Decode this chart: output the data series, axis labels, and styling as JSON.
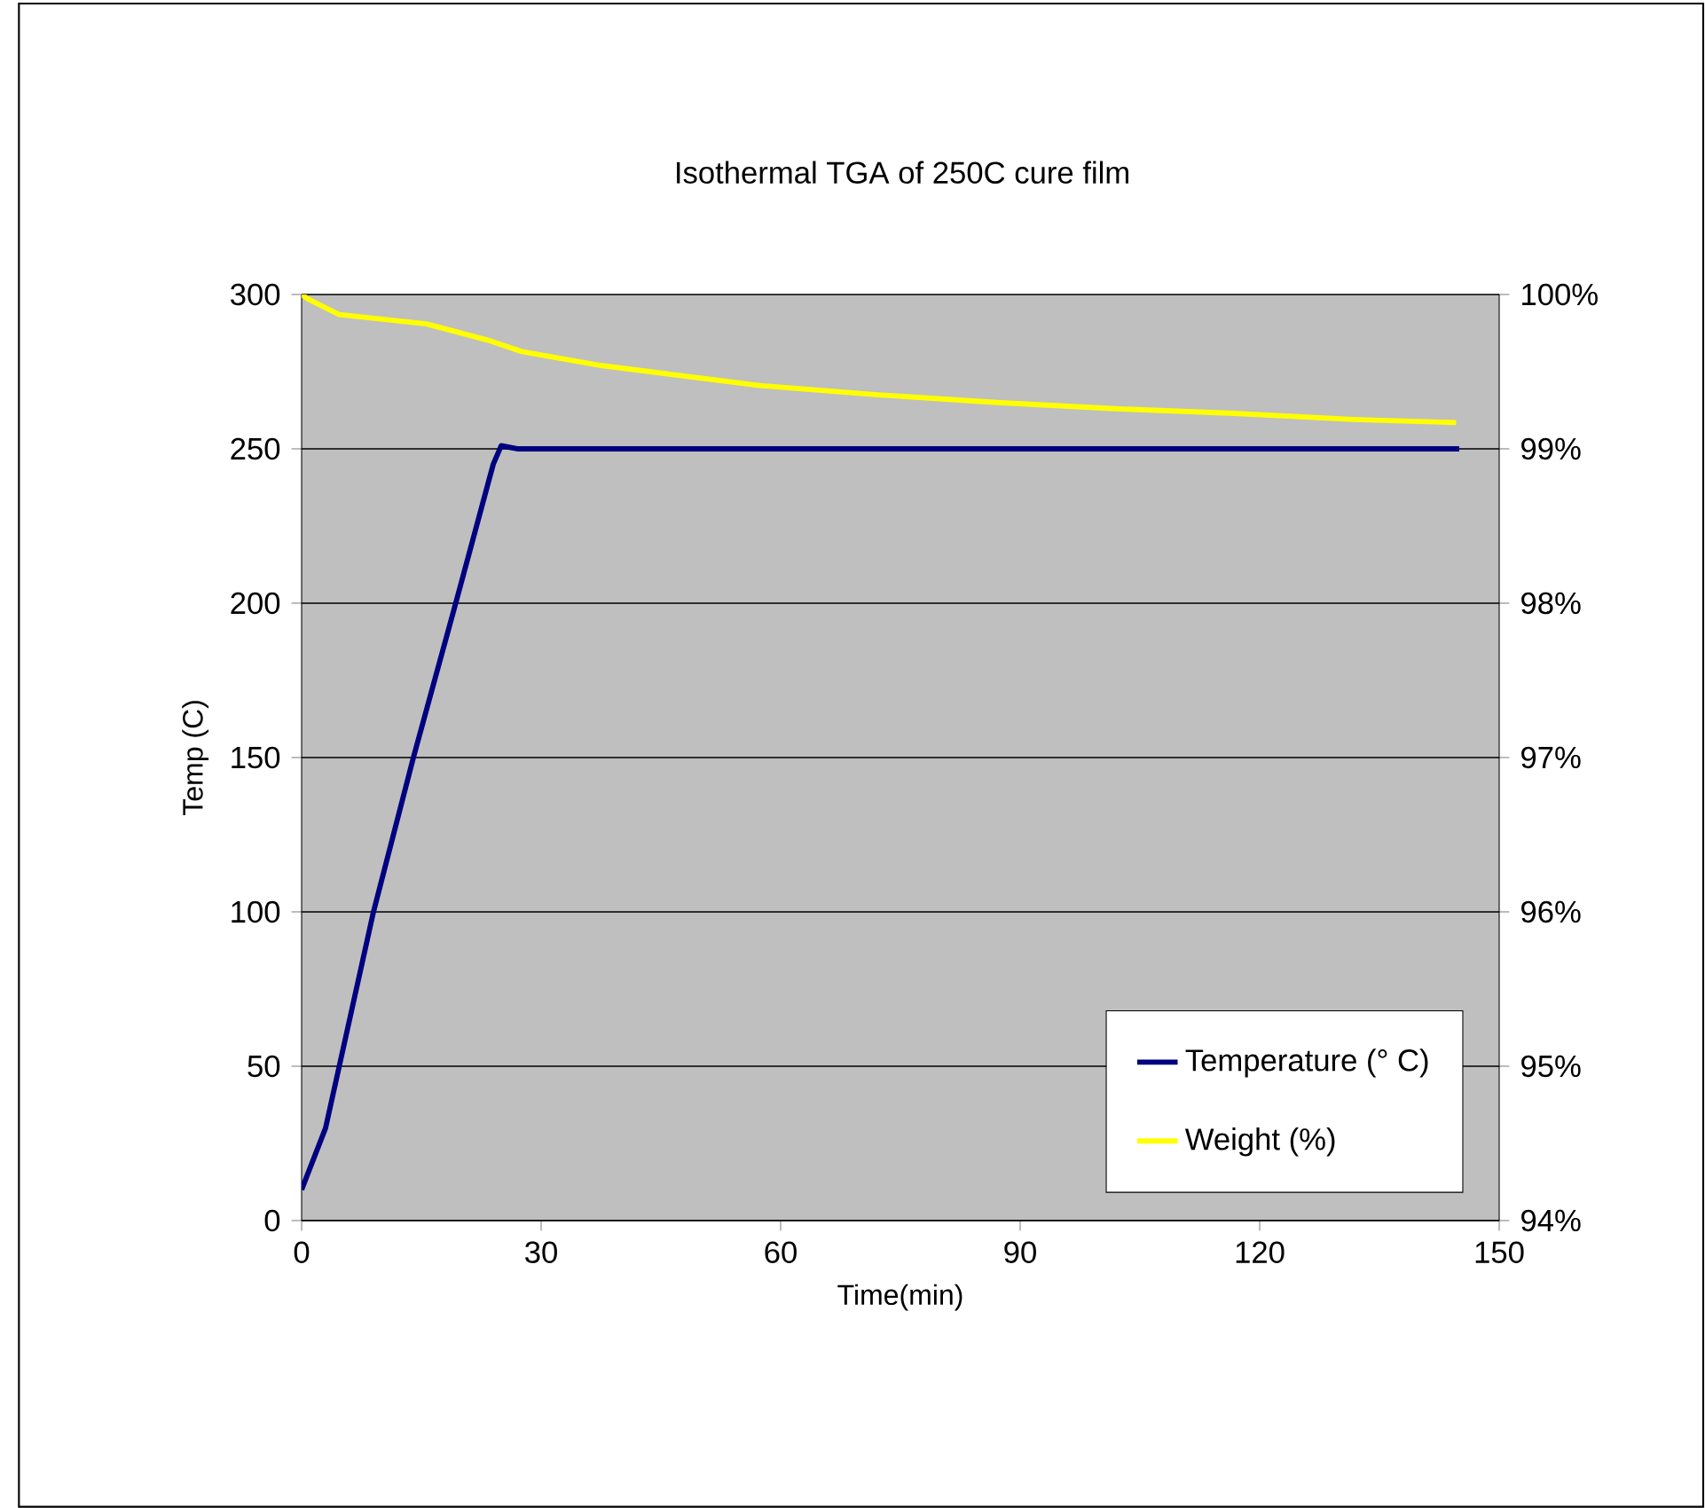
{
  "chart_data": {
    "type": "line",
    "title": "Isothermal TGA of  250C cure film",
    "xlabel": "Time(min)",
    "ylabel": "Temp (C)",
    "xlim": [
      0,
      150
    ],
    "xticks": [
      0,
      30,
      60,
      90,
      120,
      150
    ],
    "ylim": [
      0,
      300
    ],
    "yticks": [
      0,
      50,
      100,
      150,
      200,
      250,
      300
    ],
    "y2lim": [
      94,
      100
    ],
    "y2ticks": [
      {
        "value": 94,
        "label": "94%"
      },
      {
        "value": 95,
        "label": "95%"
      },
      {
        "value": 96,
        "label": "96%"
      },
      {
        "value": 97,
        "label": "97%"
      },
      {
        "value": 98,
        "label": "98%"
      },
      {
        "value": 99,
        "label": "99%"
      },
      {
        "value": 100,
        "label": "100%"
      }
    ],
    "grid": "y",
    "legend": "bottom right",
    "series": [
      {
        "name": "Temperature (°  C)",
        "color": "#000080",
        "x": [
          0,
          3,
          9,
          14,
          19.3,
          24,
          25,
          27,
          145
        ],
        "values": [
          10,
          30,
          100,
          150,
          200,
          245,
          251,
          250,
          250
        ]
      },
      {
        "name": "Weight (%)",
        "color": "#ffff00",
        "axis": "y2",
        "x": [
          0,
          0.8,
          4.7,
          15.6,
          23.6,
          27.6,
          37.5,
          57.4,
          72.2,
          87.1,
          101.9,
          116.8,
          131.7,
          144.6
        ],
        "values": [
          100,
          99.97,
          99.87,
          99.81,
          99.7,
          99.63,
          99.54,
          99.41,
          99.35,
          99.3,
          99.26,
          99.23,
          99.19,
          99.17
        ]
      }
    ]
  }
}
